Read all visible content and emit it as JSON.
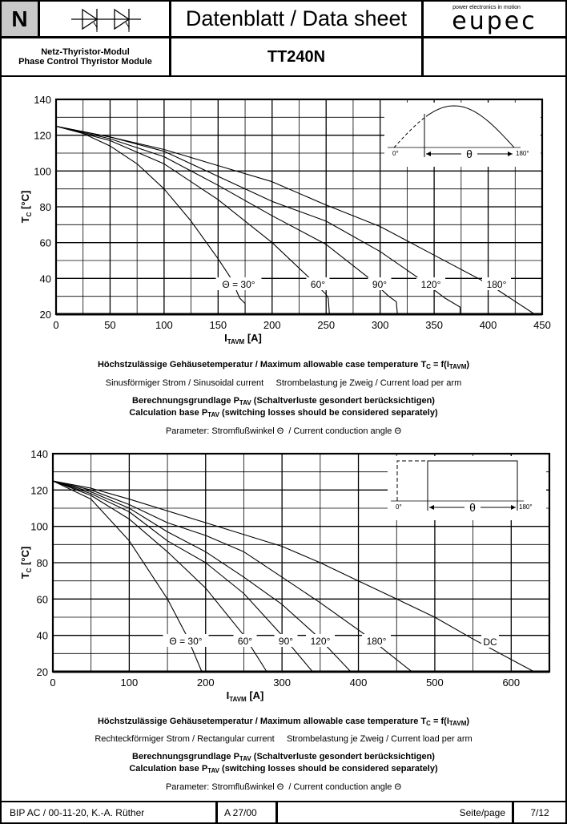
{
  "header": {
    "class_letter": "N",
    "symbol_icon": "dual-thyristor-symbol",
    "title": "Datenblatt / Data sheet",
    "logo_tagline": "power electronics in motion",
    "logo_text": "eupec",
    "subtitle_de": "Netz-Thyristor-Modul",
    "subtitle_en": "Phase Control Thyristor Module",
    "part_number": "TT240N"
  },
  "captions": [
    {
      "title_main": "Höchstzulässige Gehäusetemperatur / Maximum allowable case temperature T",
      "title_sub1": "C",
      "title_mid": " = f(I",
      "title_sub2": "TAVM",
      "title_end": ")",
      "line2": "Sinusförmiger Strom / Sinusoidal current     Strombelastung je Zweig / Current load per arm",
      "calc_de_a": "Berechnungsgrundlage P",
      "calc_sub": "TAV",
      "calc_de_b": " (Schaltverluste gesondert berücksichtigen)",
      "calc_en_a": "Calculation base P",
      "calc_en_b": " (switching losses should be considered separately)",
      "param": "Parameter: Stromflußwinkel Θ  / Current conduction angle Θ"
    },
    {
      "title_main": "Höchstzulässige Gehäusetemperatur / Maximum allowable case temperature T",
      "title_sub1": "C",
      "title_mid": " = f(I",
      "title_sub2": "TAVM",
      "title_end": ")",
      "line2": "Rechteckförmiger Strom / Rectangular current     Strombelastung je Zweig / Current load per arm",
      "calc_de_a": "Berechnungsgrundlage P",
      "calc_sub": "TAV",
      "calc_de_b": " (Schaltverluste gesondert berücksichtigen)",
      "calc_en_a": "Calculation base P",
      "calc_en_b": " (switching losses should be considered separately)",
      "param": "Parameter: Stromflußwinkel Θ  / Current conduction angle Θ"
    }
  ],
  "footer": {
    "author": "BIP AC / 00-11-20, K.-A. Rüther",
    "revision": "A 27/00",
    "page_label": "Seite/page",
    "page_number": "7/12"
  },
  "chart_data": [
    {
      "type": "line",
      "xlabel": "I",
      "xlabel_sub": "TAVM",
      "xlabel_unit": " [A]",
      "ylabel": "T",
      "ylabel_sub": "C",
      "ylabel_unit": " [°C]",
      "xlim": [
        0,
        450
      ],
      "ylim": [
        20,
        140
      ],
      "xticks": [
        0,
        50,
        100,
        150,
        200,
        250,
        300,
        350,
        400,
        450
      ],
      "yticks": [
        20,
        40,
        60,
        80,
        100,
        120,
        140
      ],
      "grid": true,
      "inset": {
        "type": "sinusoidal",
        "label_start": "0°",
        "label_end": "180°",
        "label_angle": "θ"
      },
      "series": [
        {
          "name": "Θ = 30°",
          "points": [
            [
              0,
              125
            ],
            [
              25,
              121
            ],
            [
              50,
              114
            ],
            [
              75,
              104
            ],
            [
              100,
              90
            ],
            [
              125,
              72
            ],
            [
              150,
              51
            ],
            [
              162,
              40
            ],
            [
              170,
              29
            ],
            [
              175,
              26
            ],
            [
              175,
              20
            ]
          ]
        },
        {
          "name": "60°",
          "points": [
            [
              0,
              125
            ],
            [
              50,
              117
            ],
            [
              100,
              104
            ],
            [
              150,
              84
            ],
            [
              200,
              60
            ],
            [
              235,
              40
            ],
            [
              250,
              31
            ],
            [
              252,
              29
            ],
            [
              253,
              20
            ]
          ]
        },
        {
          "name": "90°",
          "points": [
            [
              0,
              125
            ],
            [
              50,
              118
            ],
            [
              100,
              108
            ],
            [
              150,
              92
            ],
            [
              200,
              75
            ],
            [
              250,
              59
            ],
            [
              290,
              40
            ],
            [
              308,
              30
            ],
            [
              315,
              27
            ],
            [
              316,
              20
            ]
          ]
        },
        {
          "name": "120°",
          "points": [
            [
              0,
              125
            ],
            [
              50,
              119
            ],
            [
              100,
              111
            ],
            [
              150,
              97
            ],
            [
              200,
              83
            ],
            [
              250,
              72
            ],
            [
              300,
              55
            ],
            [
              336,
              40
            ],
            [
              360,
              29
            ],
            [
              374,
              24
            ],
            [
              374,
              20
            ]
          ]
        },
        {
          "name": "180°",
          "points": [
            [
              0,
              125
            ],
            [
              50,
              119
            ],
            [
              100,
              112
            ],
            [
              150,
              103
            ],
            [
              200,
              94
            ],
            [
              250,
              81
            ],
            [
              300,
              69
            ],
            [
              350,
              53
            ],
            [
              400,
              37
            ],
            [
              443,
              20
            ]
          ]
        }
      ]
    },
    {
      "type": "line",
      "xlabel": "I",
      "xlabel_sub": "TAVM",
      "xlabel_unit": " [A]",
      "ylabel": "T",
      "ylabel_sub": "C",
      "ylabel_unit": " [°C]",
      "xlim": [
        0,
        650
      ],
      "ylim": [
        20,
        140
      ],
      "xticks": [
        0,
        100,
        200,
        300,
        400,
        500,
        600
      ],
      "yticks": [
        20,
        40,
        60,
        80,
        100,
        120,
        140
      ],
      "grid": true,
      "inset": {
        "type": "rectangular",
        "label_start": "0°",
        "label_end": "180°",
        "label_angle": "θ"
      },
      "series": [
        {
          "name": "Θ = 30°",
          "points": [
            [
              0,
              125
            ],
            [
              50,
              115
            ],
            [
              100,
              92
            ],
            [
              150,
              60
            ],
            [
              175,
              40
            ],
            [
              195,
              20
            ]
          ]
        },
        {
          "name": "60°",
          "points": [
            [
              0,
              125
            ],
            [
              50,
              117
            ],
            [
              100,
              104
            ],
            [
              150,
              86
            ],
            [
              200,
              66
            ],
            [
              250,
              40
            ],
            [
              280,
              20
            ]
          ]
        },
        {
          "name": "90°",
          "points": [
            [
              0,
              125
            ],
            [
              50,
              118
            ],
            [
              100,
              108
            ],
            [
              150,
              92
            ],
            [
              200,
              80
            ],
            [
              250,
              63
            ],
            [
              300,
              40
            ],
            [
              340,
              20
            ]
          ]
        },
        {
          "name": "120°",
          "points": [
            [
              0,
              125
            ],
            [
              50,
              119
            ],
            [
              100,
              110
            ],
            [
              150,
              97
            ],
            [
              200,
              86
            ],
            [
              250,
              72
            ],
            [
              300,
              57
            ],
            [
              345,
              40
            ],
            [
              390,
              20
            ]
          ]
        },
        {
          "name": "180°",
          "points": [
            [
              0,
              125
            ],
            [
              50,
              120
            ],
            [
              100,
              112
            ],
            [
              150,
              102
            ],
            [
              200,
              95
            ],
            [
              250,
              86
            ],
            [
              300,
              72
            ],
            [
              350,
              58
            ],
            [
              410,
              40
            ],
            [
              470,
              20
            ]
          ]
        },
        {
          "name": "DC",
          "points": [
            [
              0,
              125
            ],
            [
              50,
              121
            ],
            [
              100,
              115
            ],
            [
              200,
              102
            ],
            [
              300,
              89
            ],
            [
              350,
              80
            ],
            [
              400,
              70
            ],
            [
              450,
              60
            ],
            [
              500,
              50
            ],
            [
              550,
              38
            ],
            [
              630,
              20
            ]
          ]
        }
      ]
    }
  ]
}
